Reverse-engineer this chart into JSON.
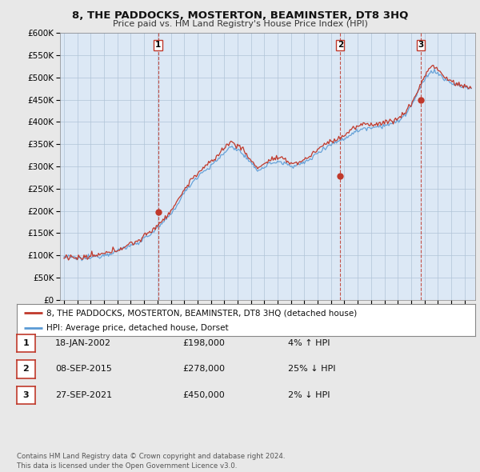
{
  "title": "8, THE PADDOCKS, MOSTERTON, BEAMINSTER, DT8 3HQ",
  "subtitle": "Price paid vs. HM Land Registry's House Price Index (HPI)",
  "ylim": [
    0,
    600000
  ],
  "xlim": [
    1994.7,
    2025.8
  ],
  "yticks": [
    0,
    50000,
    100000,
    150000,
    200000,
    250000,
    300000,
    350000,
    400000,
    450000,
    500000,
    550000,
    600000
  ],
  "ytick_labels": [
    "£0",
    "£50K",
    "£100K",
    "£150K",
    "£200K",
    "£250K",
    "£300K",
    "£350K",
    "£400K",
    "£450K",
    "£500K",
    "£550K",
    "£600K"
  ],
  "background_color": "#e8e8e8",
  "plot_bg_color": "#dce8f5",
  "grid_color": "#b0c4d8",
  "hpi_line_color": "#5b9bd5",
  "price_line_color": "#c0392b",
  "sale_marker_color": "#c0392b",
  "vline_color": "#c0392b",
  "transaction_label_border": "#c0392b",
  "transactions": [
    {
      "num": 1,
      "date": "18-JAN-2002",
      "price": 198000,
      "year": 2002.05
    },
    {
      "num": 2,
      "date": "08-SEP-2015",
      "price": 278000,
      "year": 2015.69
    },
    {
      "num": 3,
      "date": "27-SEP-2021",
      "price": 450000,
      "year": 2021.74
    }
  ],
  "legend_entries": [
    "8, THE PADDOCKS, MOSTERTON, BEAMINSTER, DT8 3HQ (detached house)",
    "HPI: Average price, detached house, Dorset"
  ],
  "table_rows": [
    [
      "1",
      "18-JAN-2002",
      "£198,000",
      "4% ↑ HPI"
    ],
    [
      "2",
      "08-SEP-2015",
      "£278,000",
      "25% ↓ HPI"
    ],
    [
      "3",
      "27-SEP-2021",
      "£450,000",
      "2% ↓ HPI"
    ]
  ],
  "footnote": "Contains HM Land Registry data © Crown copyright and database right 2024.\nThis data is licensed under the Open Government Licence v3.0."
}
